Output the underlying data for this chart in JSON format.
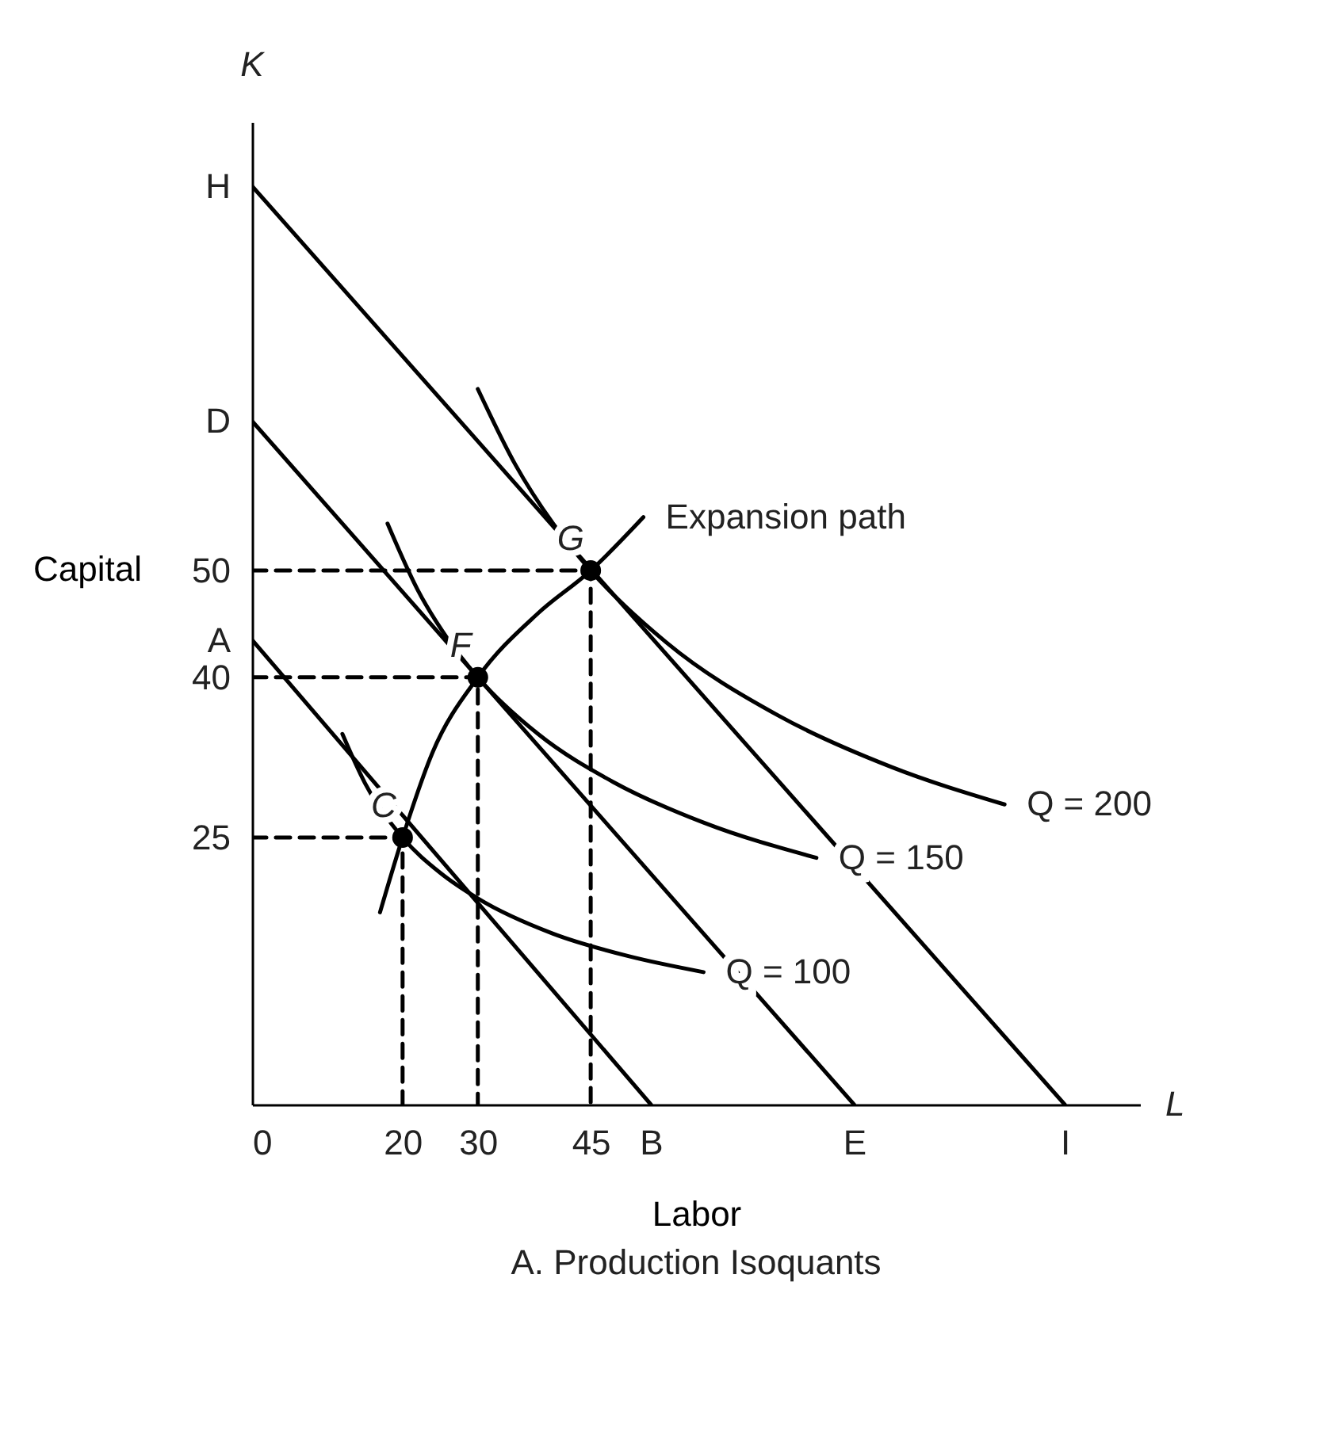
{
  "chart_data": {
    "type": "line",
    "title": "A. Production Isoquants",
    "xlabel": "Labor",
    "ylabel": "Capital",
    "xlim": [
      0,
      118
    ],
    "ylim": [
      0,
      92
    ],
    "xticks": [
      0,
      20,
      30,
      45,
      {
        "value": 53,
        "label": "B"
      },
      {
        "value": 80,
        "label": "E"
      },
      {
        "value": 108,
        "label": "I"
      }
    ],
    "yticks": [
      25,
      40,
      50,
      {
        "value": 43.5,
        "label": "A"
      },
      {
        "value": 64,
        "label": "D"
      },
      {
        "value": 86,
        "label": "H"
      }
    ],
    "grid": false,
    "series": [
      {
        "color": "#000000",
        "x": [
          0,
          53
        ],
        "values": [
          43.5,
          0
        ]
      },
      {
        "color": "#000000",
        "x": [
          0,
          80
        ],
        "values": [
          64,
          0
        ]
      },
      {
        "color": "#000000",
        "x": [
          0,
          108
        ],
        "values": [
          86,
          0
        ]
      },
      {
        "name": "Q = 100",
        "color": "#000000",
        "x": [
          12,
          15,
          20,
          25,
          30,
          40,
          50,
          60
        ],
        "values": [
          34.7,
          30.1,
          25,
          21.7,
          19.3,
          16.0,
          13.9,
          12.4
        ]
      },
      {
        "name": "Q = 150",
        "color": "#000000",
        "x": [
          18,
          22,
          26,
          30,
          38,
          48,
          60,
          75
        ],
        "values": [
          54.4,
          48.2,
          43.6,
          40,
          34.7,
          30.2,
          26.4,
          23.1
        ]
      },
      {
        "name": "Q = 200",
        "color": "#000000",
        "x": [
          30,
          35,
          40,
          45,
          55,
          70,
          85,
          100
        ],
        "values": [
          67.0,
          59.9,
          54.4,
          50,
          43.3,
          36.4,
          31.6,
          28.1
        ]
      },
      {
        "name": "Expansion path",
        "color": "#000000",
        "x": [
          17,
          20,
          24,
          30,
          38,
          45,
          52
        ],
        "values": [
          18,
          25,
          33,
          40,
          46,
          50,
          55
        ]
      },
      {
        "color": "#000000",
        "line_style": "dashed",
        "x": [
          0,
          20,
          20
        ],
        "values": [
          25,
          25,
          0
        ]
      },
      {
        "color": "#000000",
        "line_style": "dashed",
        "x": [
          0,
          30,
          30
        ],
        "values": [
          40,
          40,
          0
        ]
      },
      {
        "color": "#000000",
        "line_style": "dashed",
        "x": [
          0,
          45,
          45
        ],
        "values": [
          50,
          50,
          0
        ]
      },
      {
        "type": "scatter",
        "marker": "circle",
        "color": "#000000",
        "x": [
          20,
          30,
          45
        ],
        "values": [
          25,
          40,
          50
        ],
        "value_labels": [
          "C",
          "F",
          "G"
        ]
      }
    ],
    "annotations": [
      "K",
      "L"
    ]
  }
}
